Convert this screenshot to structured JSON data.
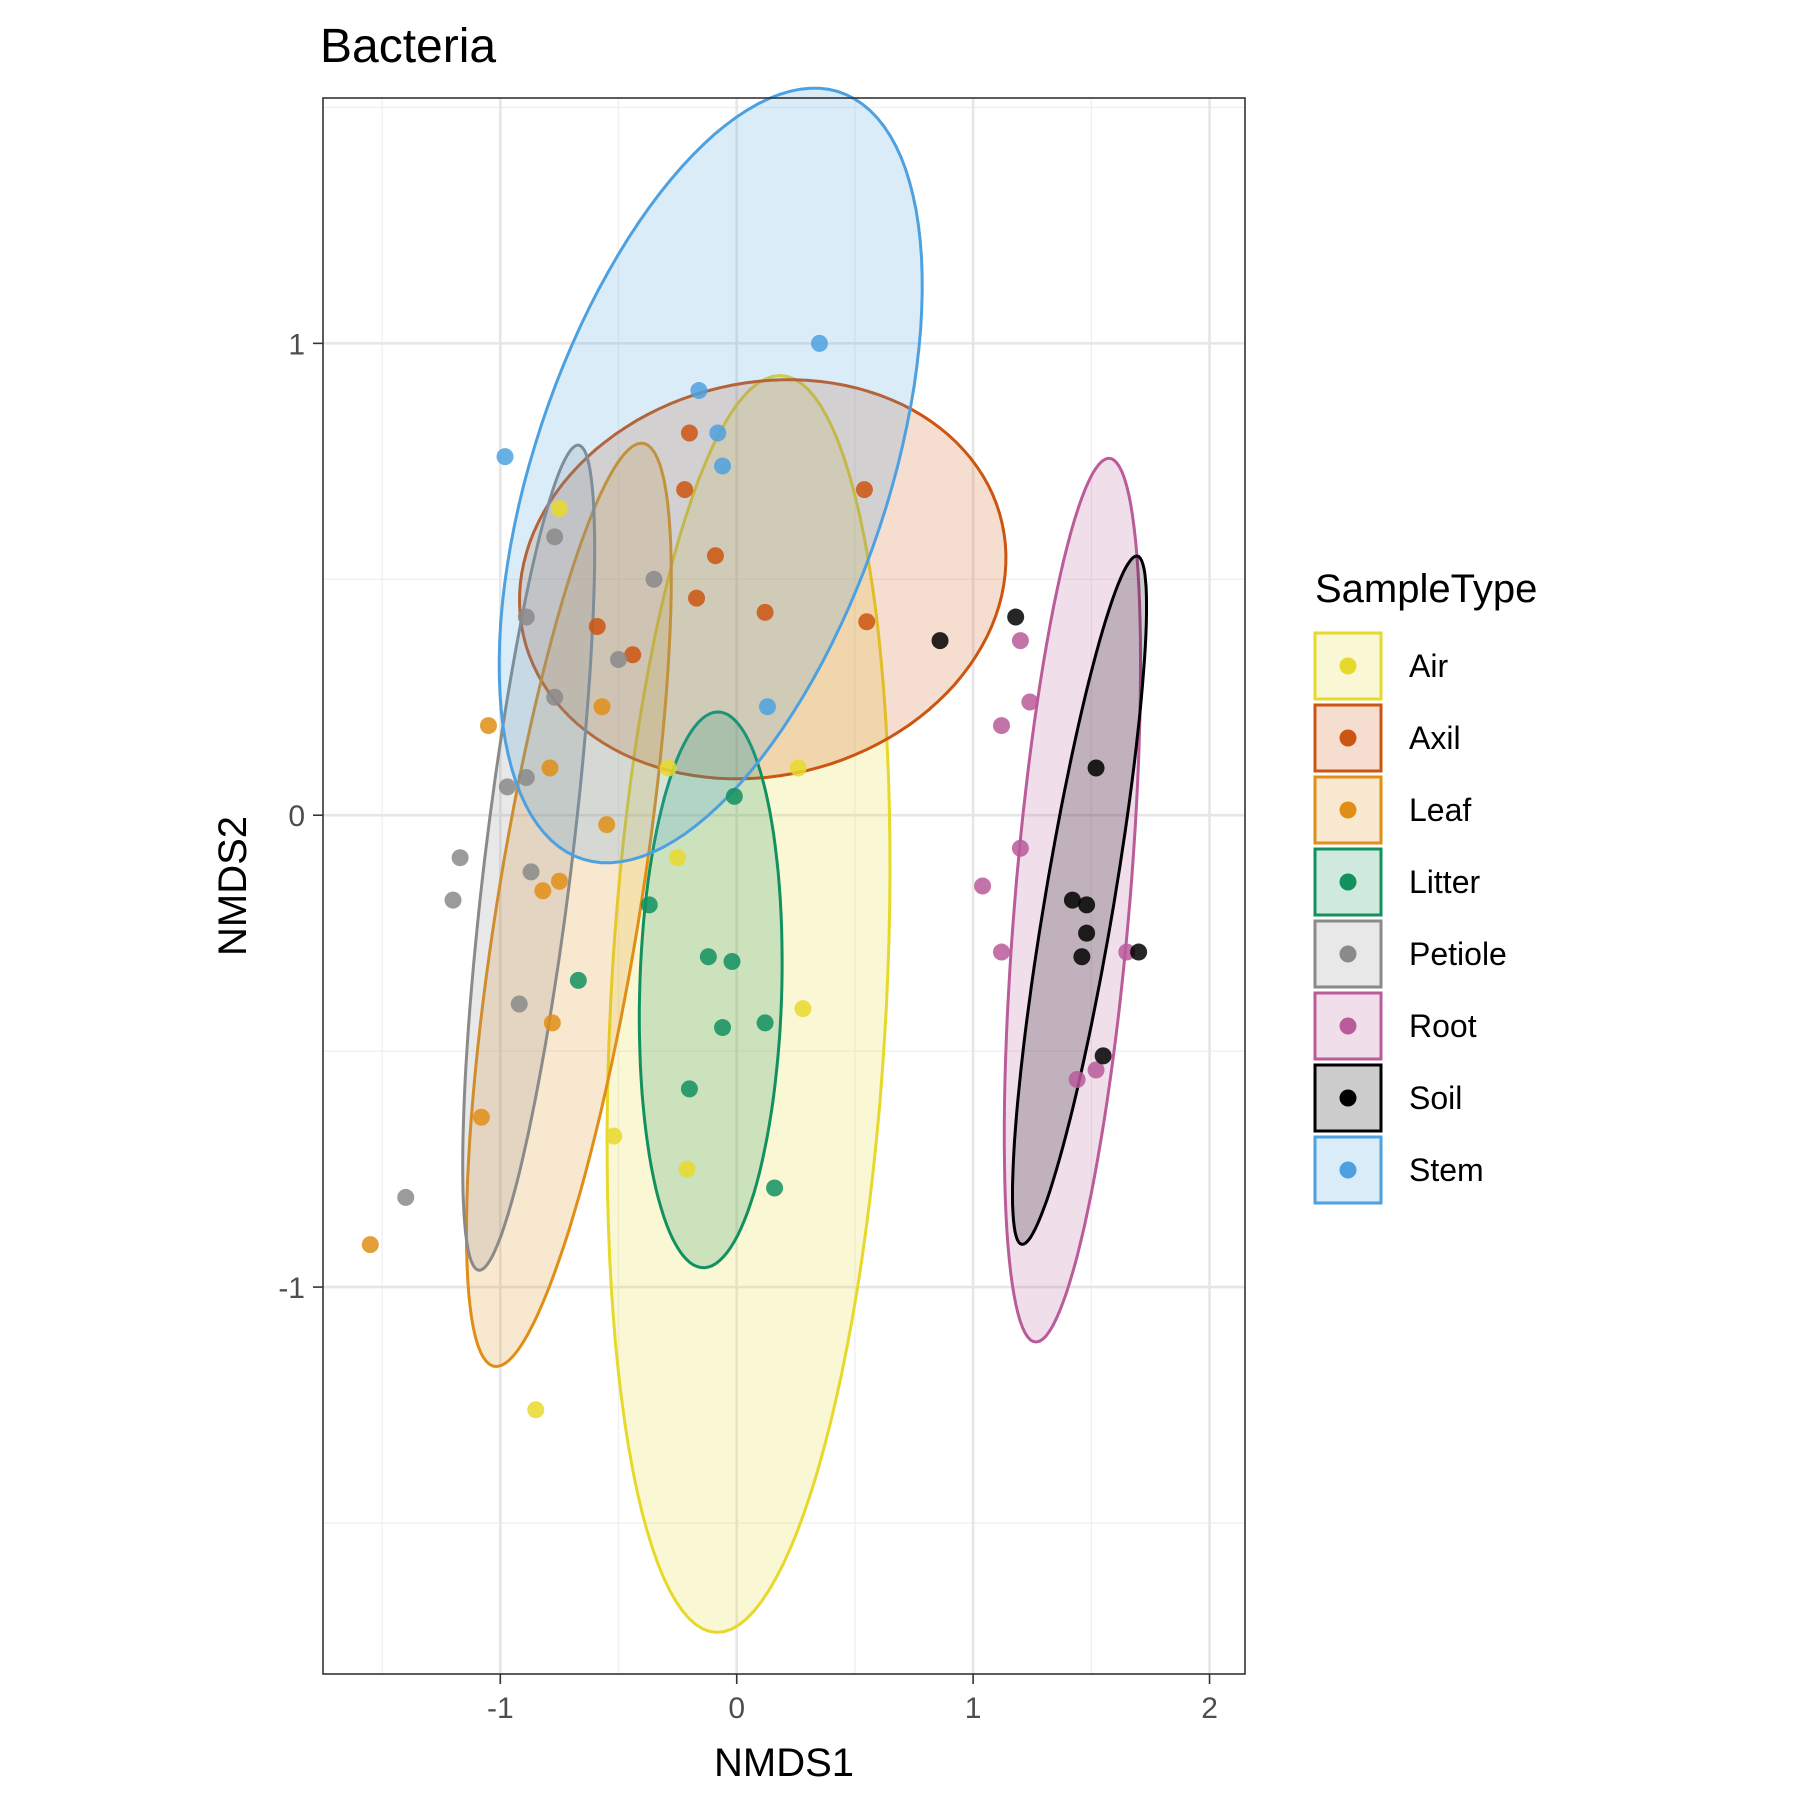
{
  "chart_data": {
    "type": "scatter",
    "title": "Bacteria",
    "xlabel": "NMDS1",
    "ylabel": "NMDS2",
    "xlim": [
      -1.75,
      2.15
    ],
    "ylim": [
      -1.82,
      1.52
    ],
    "x_ticks": [
      -1,
      0,
      1,
      2
    ],
    "x_tick_labels": [
      "-1",
      "0",
      "1",
      "2"
    ],
    "y_ticks": [
      -1,
      0,
      1
    ],
    "y_tick_labels": [
      "-1",
      "0",
      "1"
    ],
    "grid": true,
    "legend": {
      "title": "SampleType",
      "position": "right"
    },
    "series": [
      {
        "name": "Air",
        "color": "#E7D92B",
        "points": [
          [
            -0.75,
            0.65
          ],
          [
            -0.29,
            0.1
          ],
          [
            0.26,
            0.1
          ],
          [
            -0.25,
            -0.09
          ],
          [
            0.28,
            -0.41
          ],
          [
            -0.52,
            -0.68
          ],
          [
            -0.21,
            -0.75
          ],
          [
            -0.85,
            -1.26
          ]
        ],
        "ellipse": {
          "cx": 0.05,
          "cy": -0.4,
          "rx": 1.34,
          "ry": 0.58,
          "angle": 83
        }
      },
      {
        "name": "Axil",
        "color": "#CC5511",
        "points": [
          [
            -0.2,
            0.81
          ],
          [
            -0.22,
            0.69
          ],
          [
            -0.09,
            0.55
          ],
          [
            -0.17,
            0.46
          ],
          [
            -0.59,
            0.4
          ],
          [
            -0.44,
            0.34
          ],
          [
            0.12,
            0.43
          ],
          [
            0.55,
            0.41
          ],
          [
            0.54,
            0.69
          ]
        ],
        "ellipse": {
          "cx": 0.11,
          "cy": 0.5,
          "rx": 1.03,
          "ry": 0.42,
          "angle": 3
        }
      },
      {
        "name": "Leaf",
        "color": "#E08E16",
        "points": [
          [
            -1.05,
            0.19
          ],
          [
            -0.79,
            0.1
          ],
          [
            -0.82,
            -0.16
          ],
          [
            -0.75,
            -0.14
          ],
          [
            -0.57,
            0.23
          ],
          [
            -0.78,
            -0.44
          ],
          [
            -1.08,
            -0.64
          ],
          [
            -1.55,
            -0.91
          ],
          [
            -0.55,
            -0.02
          ]
        ],
        "ellipse": {
          "cx": -0.71,
          "cy": -0.19,
          "rx": 1.03,
          "ry": 0.29,
          "angle": 71
        }
      },
      {
        "name": "Litter",
        "color": "#12915F",
        "points": [
          [
            -0.01,
            0.04
          ],
          [
            -0.37,
            -0.19
          ],
          [
            -0.12,
            -0.3
          ],
          [
            -0.02,
            -0.31
          ],
          [
            -0.67,
            -0.35
          ],
          [
            -0.06,
            -0.45
          ],
          [
            0.12,
            -0.44
          ],
          [
            -0.2,
            -0.58
          ],
          [
            0.16,
            -0.79
          ]
        ],
        "ellipse": {
          "cx": -0.11,
          "cy": -0.37,
          "rx": 0.59,
          "ry": 0.3,
          "angle": 86
        }
      },
      {
        "name": "Petiole",
        "color": "#8A8A8A",
        "points": [
          [
            -0.77,
            0.59
          ],
          [
            -0.89,
            0.42
          ],
          [
            -0.35,
            0.5
          ],
          [
            -0.5,
            0.33
          ],
          [
            -0.77,
            0.25
          ],
          [
            -0.97,
            0.06
          ],
          [
            -0.89,
            0.08
          ],
          [
            -1.17,
            -0.09
          ],
          [
            -0.87,
            -0.12
          ],
          [
            -1.2,
            -0.18
          ],
          [
            -0.92,
            -0.4
          ],
          [
            -1.4,
            -0.81
          ]
        ],
        "ellipse": {
          "cx": -0.88,
          "cy": -0.09,
          "rx": 0.9,
          "ry": 0.18,
          "angle": 76
        }
      },
      {
        "name": "Root",
        "color": "#BA5B9A",
        "points": [
          [
            1.2,
            0.37
          ],
          [
            1.24,
            0.24
          ],
          [
            1.12,
            0.19
          ],
          [
            1.2,
            -0.07
          ],
          [
            1.04,
            -0.15
          ],
          [
            1.12,
            -0.29
          ],
          [
            1.65,
            -0.29
          ],
          [
            1.52,
            -0.54
          ],
          [
            1.44,
            -0.56
          ]
        ],
        "ellipse": {
          "cx": 1.42,
          "cy": -0.18,
          "rx": 0.95,
          "ry": 0.24,
          "angle": 80
        }
      },
      {
        "name": "Soil",
        "color": "#000000",
        "points": [
          [
            1.18,
            0.42
          ],
          [
            0.86,
            0.37
          ],
          [
            1.52,
            0.1
          ],
          [
            1.42,
            -0.18
          ],
          [
            1.48,
            -0.19
          ],
          [
            1.48,
            -0.25
          ],
          [
            1.46,
            -0.3
          ],
          [
            1.7,
            -0.29
          ],
          [
            1.55,
            -0.51
          ]
        ],
        "ellipse": {
          "cx": 1.45,
          "cy": -0.18,
          "rx": 0.77,
          "ry": 0.14,
          "angle": 71
        }
      },
      {
        "name": "Stem",
        "color": "#4DA1E0",
        "points": [
          [
            0.35,
            1.0
          ],
          [
            -0.98,
            0.76
          ],
          [
            -0.16,
            0.9
          ],
          [
            -0.08,
            0.81
          ],
          [
            -0.06,
            0.74
          ],
          [
            0.13,
            0.23
          ]
        ],
        "ellipse": {
          "cx": -0.11,
          "cy": 0.72,
          "rx": 1.05,
          "ry": 0.61,
          "angle": 40
        }
      }
    ]
  }
}
